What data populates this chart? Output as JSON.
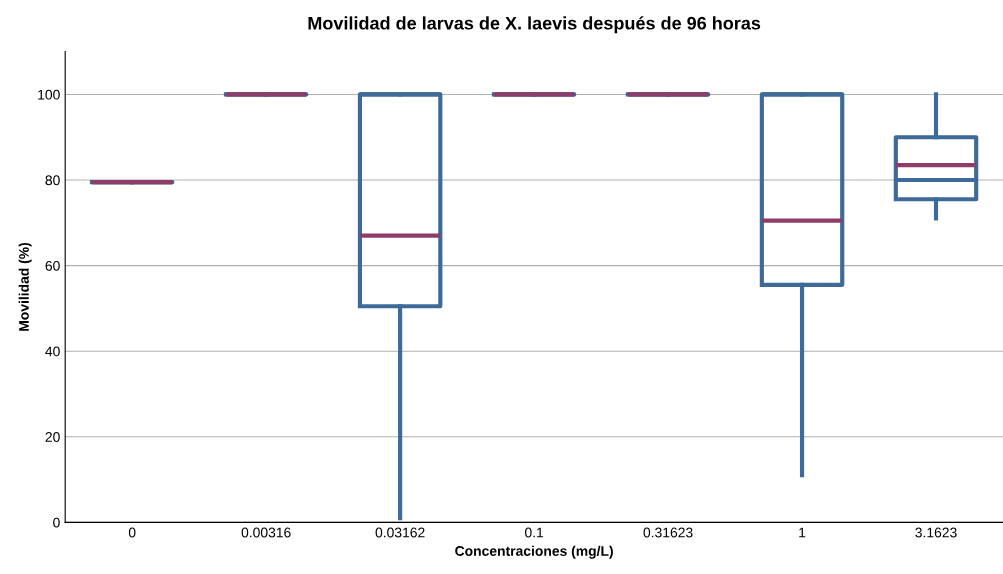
{
  "chart_data": {
    "type": "box",
    "title": "Movilidad de larvas de X. laevis después de 96 horas",
    "xlabel": "Concentraciones (mg/L)",
    "ylabel": "Movilidad (%)",
    "categories": [
      "0",
      "0.00316",
      "0.03162",
      "0.1",
      "0.31623",
      "1",
      "3.1623"
    ],
    "boxes": [
      {
        "low": 79.5,
        "q1": 79.5,
        "median": 79.5,
        "q3": 79.5,
        "high": 79.5,
        "mean": 79.5
      },
      {
        "low": 100,
        "q1": 100,
        "median": 100,
        "q3": 100,
        "high": 100,
        "mean": 100
      },
      {
        "low": 1,
        "q1": 50.5,
        "median": 100,
        "q3": 100,
        "high": 100,
        "mean": 67
      },
      {
        "low": 100,
        "q1": 100,
        "median": 100,
        "q3": 100,
        "high": 100,
        "mean": 100
      },
      {
        "low": 100,
        "q1": 100,
        "median": 100,
        "q3": 100,
        "high": 100,
        "mean": 100
      },
      {
        "low": 11,
        "q1": 55.5,
        "median": 100,
        "q3": 100,
        "high": 100,
        "mean": 70.5
      },
      {
        "low": 71,
        "q1": 75.5,
        "median": 80,
        "q3": 90,
        "high": 100,
        "mean": 83.5
      }
    ],
    "color": "#3e6a99",
    "ylim": [
      0,
      110
    ],
    "yticks": [
      0,
      20,
      40,
      60,
      80,
      100
    ],
    "grid": "y"
  }
}
